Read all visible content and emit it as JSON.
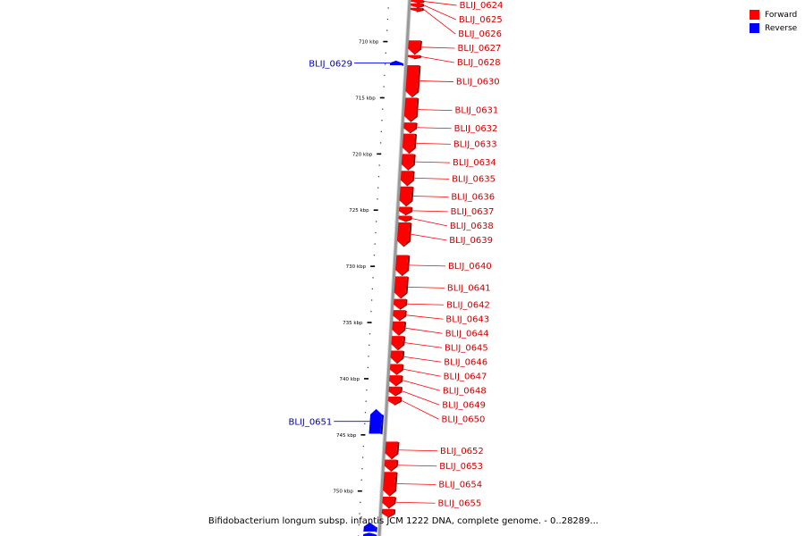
{
  "caption": "Bifidobacterium longum subsp. infantis JCM 1222 DNA, complete genome. - 0..28289...",
  "legend": [
    {
      "label": "Forward",
      "color": "#ff0000"
    },
    {
      "label": "Reverse",
      "color": "#0000ff"
    }
  ],
  "colors": {
    "forward": "#ff0000",
    "reverse": "#0000ff",
    "forward_label": "#cc0000",
    "reverse_label": "#0000aa",
    "axis": "#999999"
  },
  "axis": {
    "unit": "kbp",
    "start_kbp": 706.3,
    "end_kbp": 754.0,
    "ticks": [
      {
        "kbp": 710,
        "label": "710 kbp"
      },
      {
        "kbp": 715,
        "label": "715 kbp"
      },
      {
        "kbp": 720,
        "label": "720 kbp"
      },
      {
        "kbp": 725,
        "label": "725 kbp"
      },
      {
        "kbp": 730,
        "label": "730 kbp"
      },
      {
        "kbp": 735,
        "label": "735 kbp"
      },
      {
        "kbp": 740,
        "label": "740 kbp"
      },
      {
        "kbp": 745,
        "label": "745 kbp"
      },
      {
        "kbp": 750,
        "label": "750 kbp"
      }
    ]
  },
  "genes": [
    {
      "name": "BLIJ_0624",
      "strand": "forward",
      "start_kbp": 706.3,
      "end_kbp": 706.55
    },
    {
      "name": "BLIJ_0625",
      "strand": "forward",
      "start_kbp": 706.6,
      "end_kbp": 706.95
    },
    {
      "name": "BLIJ_0626",
      "strand": "forward",
      "start_kbp": 707.0,
      "end_kbp": 707.3
    },
    {
      "name": "BLIJ_0627",
      "strand": "forward",
      "start_kbp": 709.9,
      "end_kbp": 711.1
    },
    {
      "name": "BLIJ_0628",
      "strand": "forward",
      "start_kbp": 711.2,
      "end_kbp": 711.5
    },
    {
      "name": "BLIJ_0629",
      "strand": "reverse",
      "start_kbp": 711.7,
      "end_kbp": 712.1
    },
    {
      "name": "BLIJ_0630",
      "strand": "forward",
      "start_kbp": 712.1,
      "end_kbp": 714.9
    },
    {
      "name": "BLIJ_0631",
      "strand": "forward",
      "start_kbp": 715.0,
      "end_kbp": 717.1
    },
    {
      "name": "BLIJ_0632",
      "strand": "forward",
      "start_kbp": 717.2,
      "end_kbp": 718.1
    },
    {
      "name": "BLIJ_0633",
      "strand": "forward",
      "start_kbp": 718.2,
      "end_kbp": 719.9
    },
    {
      "name": "BLIJ_0634",
      "strand": "forward",
      "start_kbp": 720.0,
      "end_kbp": 721.4
    },
    {
      "name": "BLIJ_0635",
      "strand": "forward",
      "start_kbp": 721.5,
      "end_kbp": 722.8
    },
    {
      "name": "BLIJ_0636",
      "strand": "forward",
      "start_kbp": 722.9,
      "end_kbp": 724.6
    },
    {
      "name": "BLIJ_0637",
      "strand": "forward",
      "start_kbp": 724.7,
      "end_kbp": 725.4
    },
    {
      "name": "BLIJ_0638",
      "strand": "forward",
      "start_kbp": 725.5,
      "end_kbp": 726.0
    },
    {
      "name": "BLIJ_0639",
      "strand": "forward",
      "start_kbp": 726.1,
      "end_kbp": 728.2
    },
    {
      "name": "BLIJ_0640",
      "strand": "forward",
      "start_kbp": 729.0,
      "end_kbp": 730.8
    },
    {
      "name": "BLIJ_0641",
      "strand": "forward",
      "start_kbp": 730.9,
      "end_kbp": 732.8
    },
    {
      "name": "BLIJ_0642",
      "strand": "forward",
      "start_kbp": 732.9,
      "end_kbp": 733.8
    },
    {
      "name": "BLIJ_0643",
      "strand": "forward",
      "start_kbp": 733.9,
      "end_kbp": 734.8
    },
    {
      "name": "BLIJ_0644",
      "strand": "forward",
      "start_kbp": 734.9,
      "end_kbp": 736.1
    },
    {
      "name": "BLIJ_0645",
      "strand": "forward",
      "start_kbp": 736.2,
      "end_kbp": 737.4
    },
    {
      "name": "BLIJ_0646",
      "strand": "forward",
      "start_kbp": 737.5,
      "end_kbp": 738.6
    },
    {
      "name": "BLIJ_0647",
      "strand": "forward",
      "start_kbp": 738.7,
      "end_kbp": 739.6
    },
    {
      "name": "BLIJ_0648",
      "strand": "forward",
      "start_kbp": 739.7,
      "end_kbp": 740.6
    },
    {
      "name": "BLIJ_0649",
      "strand": "forward",
      "start_kbp": 740.7,
      "end_kbp": 741.5
    },
    {
      "name": "BLIJ_0650",
      "strand": "forward",
      "start_kbp": 741.6,
      "end_kbp": 742.3
    },
    {
      "name": "BLIJ_0651",
      "strand": "reverse",
      "start_kbp": 742.7,
      "end_kbp": 744.9
    },
    {
      "name": "BLIJ_0652",
      "strand": "forward",
      "start_kbp": 745.6,
      "end_kbp": 747.1
    },
    {
      "name": "BLIJ_0653",
      "strand": "forward",
      "start_kbp": 747.2,
      "end_kbp": 748.2
    },
    {
      "name": "BLIJ_0654",
      "strand": "forward",
      "start_kbp": 748.3,
      "end_kbp": 750.4
    },
    {
      "name": "BLIJ_0655",
      "strand": "forward",
      "start_kbp": 750.5,
      "end_kbp": 751.5
    },
    {
      "name": "",
      "strand": "forward",
      "start_kbp": 751.6,
      "end_kbp": 752.3
    },
    {
      "name": "",
      "strand": "reverse",
      "start_kbp": 752.8,
      "end_kbp": 753.6
    },
    {
      "name": "",
      "strand": "reverse",
      "start_kbp": 753.7,
      "end_kbp": 754.0
    }
  ]
}
